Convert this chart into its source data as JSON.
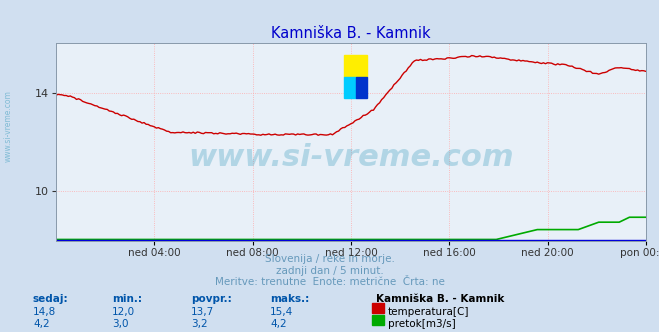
{
  "title": "Kamniška B. - Kamnik",
  "title_color": "#0000cc",
  "bg_color": "#d0dff0",
  "plot_bg_color": "#e8f0f8",
  "grid_color": "#ffaaaa",
  "x_tick_labels": [
    "ned 04:00",
    "ned 08:00",
    "ned 12:00",
    "ned 16:00",
    "ned 20:00",
    "pon 00:00"
  ],
  "x_tick_positions": [
    48,
    96,
    144,
    192,
    240,
    288
  ],
  "n_points": 289,
  "temp_color": "#cc0000",
  "flow_color": "#00aa00",
  "level_color": "#0000dd",
  "watermark_color": "#3399bb",
  "subtitle1": "Slovenija / reke in morje.",
  "subtitle2": "zadnji dan / 5 minut.",
  "subtitle3": "Meritve: trenutne  Enote: metrične  Črta: ne",
  "subtitle_color": "#6699bb",
  "table_header": [
    "sedaj:",
    "min.:",
    "povpr.:",
    "maks.:"
  ],
  "station_label": "Kamniška B. - Kamnik",
  "temp_row": [
    "14,8",
    "12,0",
    "13,7",
    "15,4"
  ],
  "flow_row": [
    "4,2",
    "3,0",
    "3,2",
    "4,2"
  ],
  "label_color": "#0055aa",
  "ylim_min": 8.0,
  "ylim_max": 16.0,
  "ytick_vals": [
    10,
    14
  ],
  "logo_yellow": "#ffee00",
  "logo_cyan": "#00ccff",
  "logo_blue": "#0033cc"
}
